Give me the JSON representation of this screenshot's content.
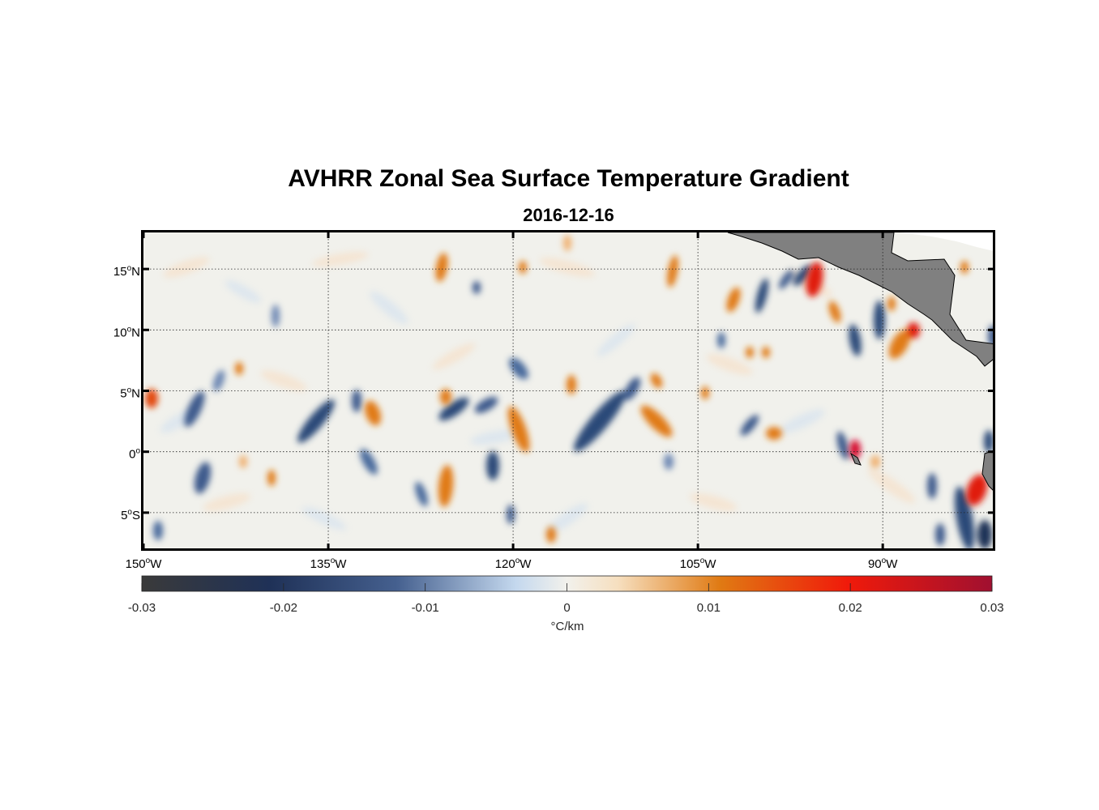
{
  "title": "AVHRR Zonal Sea Surface Temperature Gradient",
  "subtitle": "2016-12-16",
  "map": {
    "lon_range": [
      -150,
      -81
    ],
    "lat_range": [
      -8,
      18
    ],
    "lon_ticks": [
      {
        "value": -150,
        "deg": "150",
        "hemi": "W"
      },
      {
        "value": -135,
        "deg": "135",
        "hemi": "W"
      },
      {
        "value": -120,
        "deg": "120",
        "hemi": "W"
      },
      {
        "value": -105,
        "deg": "105",
        "hemi": "W"
      },
      {
        "value": -90,
        "deg": "90",
        "hemi": "W"
      }
    ],
    "lat_ticks": [
      {
        "value": 15,
        "deg": "15",
        "hemi": "N"
      },
      {
        "value": 10,
        "deg": "10",
        "hemi": "N"
      },
      {
        "value": 5,
        "deg": "5",
        "hemi": "N"
      },
      {
        "value": 0,
        "deg": "0",
        "hemi": ""
      },
      {
        "value": -5,
        "deg": "5",
        "hemi": "S"
      }
    ],
    "deg_symbol": "o",
    "grid": "dotted",
    "land_color": "#808080"
  },
  "colorbar": {
    "range": [
      -0.03,
      0.03
    ],
    "ticks": [
      "-0.03",
      "-0.02",
      "-0.01",
      "0",
      "0.01",
      "0.02",
      "0.03"
    ],
    "tick_values": [
      -0.03,
      -0.02,
      -0.01,
      0,
      0.01,
      0.02,
      0.03
    ],
    "label": "°C/km",
    "colors": [
      "#3a3a3a",
      "#1f3157",
      "#45608f",
      "#c4d8ee",
      "#f2f1ec",
      "#f6dfbf",
      "#e07a13",
      "#f01a0a",
      "#a01030"
    ]
  }
}
